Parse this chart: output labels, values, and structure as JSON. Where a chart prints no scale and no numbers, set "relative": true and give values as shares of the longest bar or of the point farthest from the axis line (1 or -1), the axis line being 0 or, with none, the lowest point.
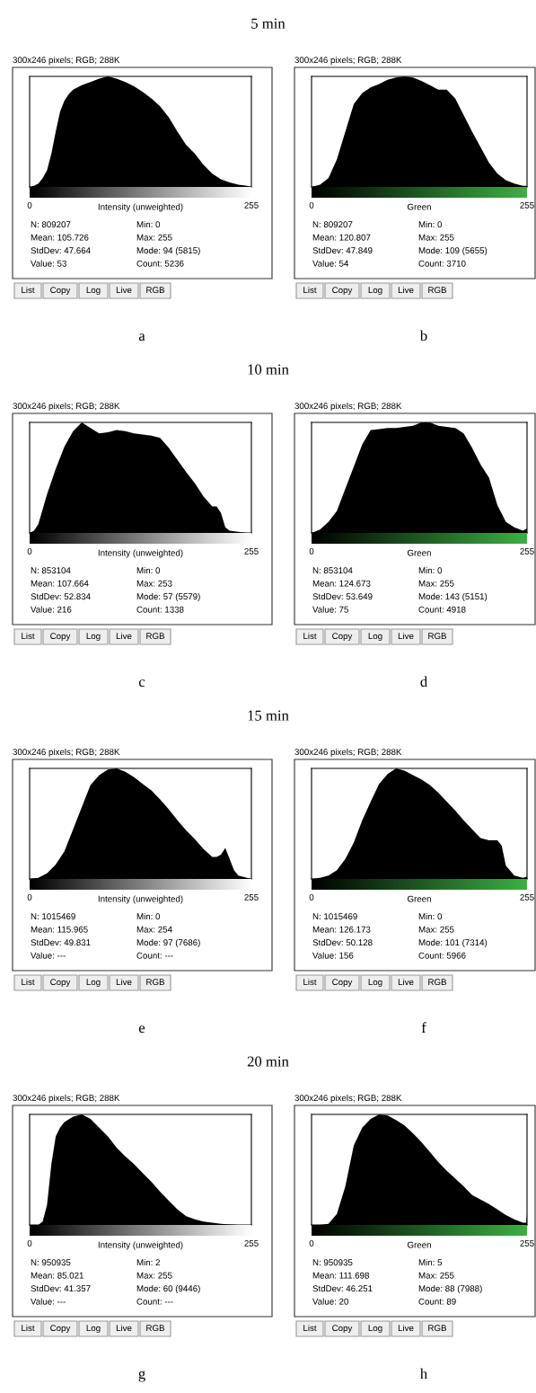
{
  "chart_data": [
    {
      "type": "area",
      "relative": true,
      "subtitle": "5 min",
      "title": "300x246 pixels; RGB; 288K",
      "xlabel": "Intensity (unweighted)",
      "xlim": [
        0,
        255
      ],
      "xticks": [
        0,
        255
      ],
      "x": [
        0,
        5,
        10,
        15,
        20,
        25,
        30,
        35,
        40,
        45,
        50,
        60,
        70,
        80,
        90,
        100,
        110,
        120,
        130,
        140,
        150,
        160,
        170,
        180,
        190,
        200,
        210,
        220,
        230,
        240,
        250,
        255
      ],
      "series": [
        {
          "color": "#000000",
          "values": [
            0,
            0.01,
            0.03,
            0.08,
            0.15,
            0.3,
            0.5,
            0.68,
            0.78,
            0.84,
            0.88,
            0.92,
            0.95,
            0.98,
            1.0,
            0.98,
            0.95,
            0.91,
            0.86,
            0.8,
            0.73,
            0.63,
            0.5,
            0.38,
            0.3,
            0.2,
            0.12,
            0.07,
            0.04,
            0.02,
            0.01,
            0
          ]
        }
      ],
      "annotations": [
        "N: 809207",
        "Mean: 105.726",
        "StdDev: 47.664",
        "Value: 53",
        "Min: 0",
        "Max: 255",
        "Mode: 94 (5815)",
        "Count: 5236",
        "List",
        "Copy",
        "Log",
        "Live",
        "RGB",
        "a"
      ]
    },
    {
      "type": "area",
      "relative": true,
      "title": "300x246 pixels; RGB; 288K",
      "xlabel": "Green",
      "xlim": [
        0,
        255
      ],
      "xticks": [
        0,
        255
      ],
      "x": [
        0,
        10,
        20,
        30,
        40,
        50,
        60,
        70,
        80,
        90,
        100,
        110,
        120,
        130,
        140,
        150,
        160,
        170,
        180,
        190,
        200,
        210,
        220,
        230,
        240,
        250,
        255
      ],
      "series": [
        {
          "color": "#000000",
          "values": [
            0,
            0.02,
            0.08,
            0.25,
            0.5,
            0.75,
            0.85,
            0.9,
            0.93,
            0.97,
            0.99,
            1.0,
            0.99,
            0.96,
            0.92,
            0.88,
            0.88,
            0.8,
            0.65,
            0.5,
            0.36,
            0.22,
            0.12,
            0.06,
            0.03,
            0.01,
            0.01
          ]
        }
      ],
      "annotations": [
        "N: 809207",
        "Mean: 120.807",
        "StdDev: 47.849",
        "Value: 54",
        "Min: 0",
        "Max: 255",
        "Mode: 109 (5655)",
        "Count: 3710",
        "List",
        "Copy",
        "Log",
        "Live",
        "RGB",
        "b"
      ]
    },
    {
      "type": "area",
      "relative": true,
      "subtitle": "10 min",
      "title": "300x246 pixels; RGB; 288K",
      "xlabel": "Intensity (unweighted)",
      "xlim": [
        0,
        255
      ],
      "xticks": [
        0,
        255
      ],
      "x": [
        0,
        5,
        10,
        20,
        30,
        40,
        50,
        60,
        70,
        80,
        90,
        100,
        110,
        120,
        130,
        140,
        150,
        160,
        170,
        180,
        190,
        200,
        210,
        215,
        220,
        225,
        230,
        240,
        250,
        255
      ],
      "series": [
        {
          "color": "#000000",
          "values": [
            0,
            0.02,
            0.08,
            0.35,
            0.58,
            0.78,
            0.92,
            1.0,
            0.95,
            0.9,
            0.91,
            0.93,
            0.92,
            0.9,
            0.89,
            0.88,
            0.86,
            0.77,
            0.66,
            0.55,
            0.45,
            0.33,
            0.24,
            0.24,
            0.18,
            0.05,
            0.02,
            0.01,
            0,
            0
          ]
        }
      ],
      "annotations": [
        "N: 853104",
        "Mean: 107.664",
        "StdDev: 52.834",
        "Value: 216",
        "Min: 0",
        "Max: 253",
        "Mode: 57 (5579)",
        "Count: 1338",
        "List",
        "Copy",
        "Log",
        "Live",
        "RGB",
        "c"
      ]
    },
    {
      "type": "area",
      "relative": true,
      "title": "300x246 pixels; RGB; 288K",
      "xlabel": "Green",
      "xlim": [
        0,
        255
      ],
      "xticks": [
        0,
        255
      ],
      "x": [
        0,
        10,
        20,
        30,
        40,
        50,
        60,
        70,
        80,
        90,
        100,
        110,
        120,
        130,
        140,
        150,
        160,
        170,
        180,
        190,
        200,
        210,
        220,
        230,
        240,
        250,
        255
      ],
      "series": [
        {
          "color": "#000000",
          "values": [
            0,
            0.03,
            0.1,
            0.2,
            0.4,
            0.6,
            0.8,
            0.93,
            0.94,
            0.95,
            0.95,
            0.96,
            0.97,
            1.0,
            1.0,
            0.97,
            0.96,
            0.95,
            0.9,
            0.77,
            0.62,
            0.5,
            0.25,
            0.1,
            0.05,
            0.02,
            0.04
          ]
        }
      ],
      "annotations": [
        "N: 853104",
        "Mean: 124.673",
        "StdDev: 53.649",
        "Value: 75",
        "Min: 0",
        "Max: 255",
        "Mode: 143 (5151)",
        "Count: 4918",
        "List",
        "Copy",
        "Log",
        "Live",
        "RGB",
        "d"
      ]
    },
    {
      "type": "area",
      "relative": true,
      "subtitle": "15 min",
      "title": "300x246 pixels; RGB; 288K",
      "xlabel": "Intensity (unweighted)",
      "xlim": [
        0,
        255
      ],
      "xticks": [
        0,
        255
      ],
      "x": [
        0,
        10,
        20,
        30,
        40,
        50,
        60,
        70,
        80,
        90,
        100,
        110,
        120,
        130,
        140,
        150,
        160,
        170,
        180,
        190,
        200,
        210,
        215,
        220,
        225,
        230,
        235,
        240,
        250,
        255
      ],
      "series": [
        {
          "color": "#000000",
          "values": [
            0,
            0.01,
            0.05,
            0.13,
            0.25,
            0.45,
            0.65,
            0.85,
            0.94,
            0.99,
            1.0,
            0.97,
            0.92,
            0.86,
            0.8,
            0.72,
            0.63,
            0.53,
            0.44,
            0.36,
            0.27,
            0.2,
            0.2,
            0.22,
            0.28,
            0.18,
            0.08,
            0.03,
            0.01,
            0
          ]
        }
      ],
      "annotations": [
        "N: 1015469",
        "Mean: 115.965",
        "StdDev: 49.831",
        "Value: ---",
        "Min: 0",
        "Max: 254",
        "Mode: 97 (7686)",
        "Count: ---",
        "List",
        "Copy",
        "Log",
        "Live",
        "RGB",
        "e"
      ]
    },
    {
      "type": "area",
      "relative": true,
      "title": "300x246 pixels; RGB; 288K",
      "xlabel": "Green",
      "xlim": [
        0,
        255
      ],
      "xticks": [
        0,
        255
      ],
      "x": [
        0,
        10,
        20,
        30,
        40,
        50,
        60,
        70,
        80,
        90,
        100,
        110,
        120,
        130,
        140,
        150,
        160,
        170,
        180,
        190,
        200,
        210,
        220,
        225,
        230,
        240,
        250,
        255
      ],
      "series": [
        {
          "color": "#000000",
          "values": [
            0,
            0.01,
            0.03,
            0.08,
            0.18,
            0.33,
            0.53,
            0.7,
            0.86,
            0.95,
            1.0,
            0.98,
            0.94,
            0.9,
            0.85,
            0.78,
            0.7,
            0.62,
            0.53,
            0.45,
            0.37,
            0.35,
            0.35,
            0.3,
            0.12,
            0.03,
            0.01,
            0.02
          ]
        }
      ],
      "annotations": [
        "N: 1015469",
        "Mean: 126.173",
        "StdDev: 50.128",
        "Value: 156",
        "Min: 0",
        "Max: 255",
        "Mode: 101 (7314)",
        "Count: 5966",
        "List",
        "Copy",
        "Log",
        "Live",
        "RGB",
        "f"
      ]
    },
    {
      "type": "area",
      "relative": true,
      "subtitle": "20 min",
      "title": "300x246 pixels; RGB; 288K",
      "xlabel": "Intensity (unweighted)",
      "xlim": [
        0,
        255
      ],
      "xticks": [
        0,
        255
      ],
      "x": [
        0,
        5,
        10,
        15,
        20,
        25,
        30,
        35,
        40,
        50,
        60,
        70,
        80,
        90,
        100,
        110,
        120,
        130,
        140,
        150,
        160,
        170,
        180,
        190,
        200,
        220,
        240,
        255
      ],
      "series": [
        {
          "color": "#000000",
          "values": [
            0,
            0,
            0,
            0.03,
            0.18,
            0.55,
            0.8,
            0.88,
            0.93,
            0.98,
            1.0,
            0.96,
            0.88,
            0.8,
            0.7,
            0.62,
            0.55,
            0.47,
            0.39,
            0.3,
            0.22,
            0.14,
            0.08,
            0.05,
            0.03,
            0.01,
            0,
            0
          ]
        }
      ],
      "annotations": [
        "N: 950935",
        "Mean: 85.021",
        "StdDev: 41.357",
        "Value: ---",
        "Min: 2",
        "Max: 255",
        "Mode: 60 (9446)",
        "Count: ---",
        "List",
        "Copy",
        "Log",
        "Live",
        "RGB",
        "g"
      ]
    },
    {
      "type": "area",
      "relative": true,
      "title": "300x246 pixels; RGB; 288K",
      "xlabel": "Green",
      "xlim": [
        0,
        255
      ],
      "xticks": [
        0,
        255
      ],
      "x": [
        0,
        10,
        20,
        30,
        40,
        50,
        60,
        70,
        80,
        90,
        100,
        110,
        120,
        130,
        140,
        150,
        160,
        170,
        180,
        190,
        200,
        210,
        220,
        230,
        240,
        250,
        254,
        255
      ],
      "series": [
        {
          "color": "#000000",
          "values": [
            0,
            0,
            0.01,
            0.1,
            0.35,
            0.72,
            0.88,
            0.96,
            1.0,
            0.99,
            0.95,
            0.9,
            0.83,
            0.75,
            0.66,
            0.57,
            0.49,
            0.42,
            0.35,
            0.27,
            0.23,
            0.19,
            0.14,
            0.09,
            0.05,
            0.02,
            0.02,
            0.1
          ]
        }
      ],
      "annotations": [
        "N: 950935",
        "Mean: 111.698",
        "StdDev: 46.251",
        "Value: 20",
        "Min: 5",
        "Max: 255",
        "Mode: 88 (7988)",
        "Count: 89",
        "List",
        "Copy",
        "Log",
        "Live",
        "RGB",
        "h"
      ]
    }
  ]
}
